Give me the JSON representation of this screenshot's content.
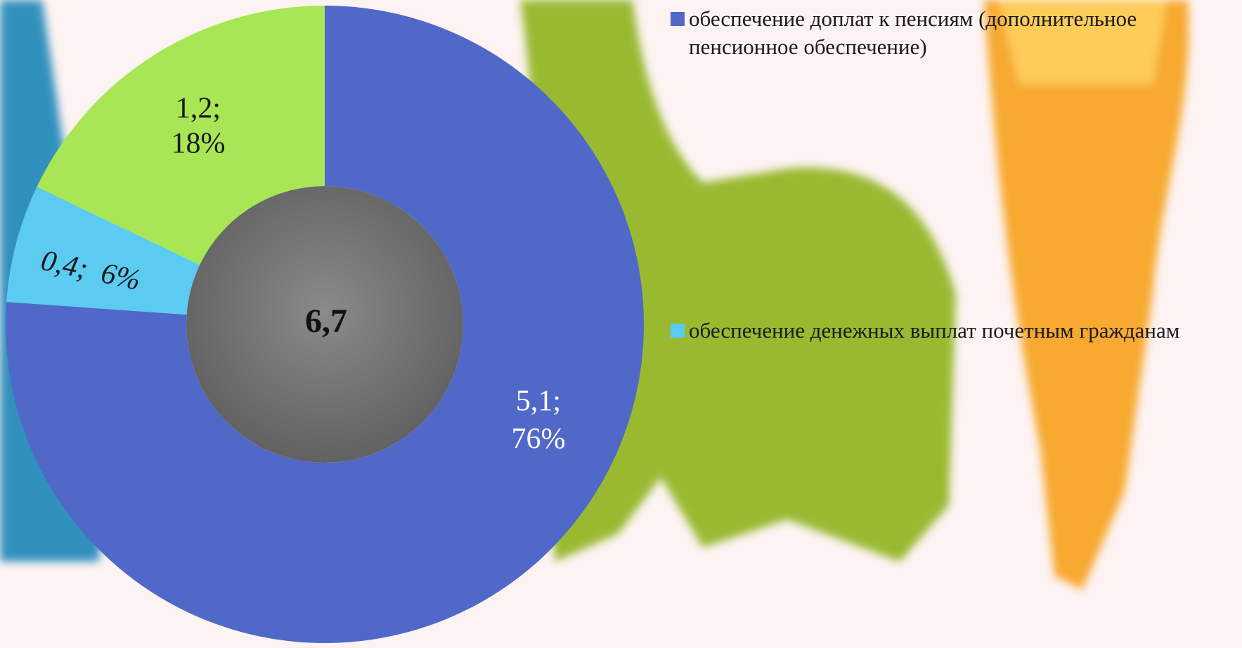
{
  "chart_data": {
    "type": "donut",
    "categories": [
      "обеспечение доплат к пенсиям (дополнительное пенсионное обеспечение)",
      "обеспечение денежных выплат почетным гражданам",
      null
    ],
    "values": [
      5.1,
      0.4,
      1.2
    ],
    "value_labels": [
      "5,1;",
      "0,4;",
      "1,2;"
    ],
    "percents": [
      76,
      6,
      18
    ],
    "percent_labels": [
      "76%",
      "6%",
      "18%"
    ],
    "colors": [
      "#5068c8",
      "#5bcbf2",
      "#a8e655"
    ],
    "total": 6.7,
    "total_label": "6,7"
  }
}
